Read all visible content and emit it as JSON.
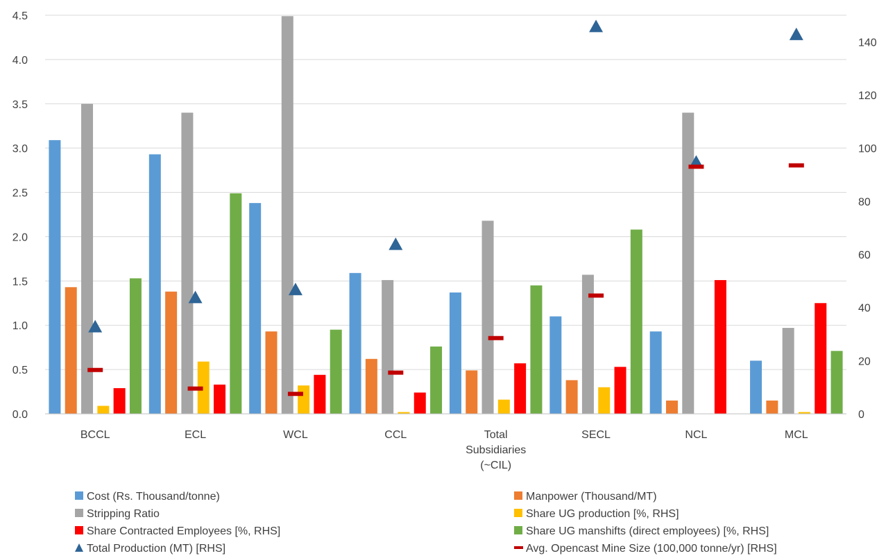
{
  "chart_data": {
    "type": "bar",
    "title": "",
    "categories": [
      [
        "BCCL"
      ],
      [
        "ECL"
      ],
      [
        "WCL"
      ],
      [
        "CCL"
      ],
      [
        "Total",
        "Subsidiaries",
        "(~CIL)"
      ],
      [
        "SECL"
      ],
      [
        "NCL"
      ],
      [
        "MCL"
      ]
    ],
    "y_left": {
      "min": 0,
      "max": 4.5,
      "ticks": [
        "0.0",
        "0.5",
        "1.0",
        "1.5",
        "2.0",
        "2.5",
        "3.0",
        "3.5",
        "4.0",
        "4.5"
      ]
    },
    "y_right": {
      "min": 0,
      "max": 150,
      "ticks": [
        "0",
        "20",
        "40",
        "60",
        "80",
        "100",
        "120",
        "140"
      ]
    },
    "grid": true,
    "legend_position": "bottom",
    "series": [
      {
        "name": "Cost (Rs. Thousand/tonne)",
        "kind": "bar",
        "axis": "left",
        "color": "#5B9BD5",
        "values": [
          3.09,
          2.93,
          2.38,
          1.59,
          1.37,
          1.1,
          0.93,
          0.6
        ]
      },
      {
        "name": "Manpower (Thousand/MT)",
        "kind": "bar",
        "axis": "left",
        "color": "#ED7D31",
        "values": [
          1.43,
          1.38,
          0.93,
          0.62,
          0.49,
          0.38,
          0.15,
          0.15
        ]
      },
      {
        "name": "Stripping Ratio",
        "kind": "bar",
        "axis": "left",
        "color": "#A5A5A5",
        "values": [
          3.5,
          3.4,
          4.49,
          1.51,
          2.18,
          1.57,
          3.4,
          0.97
        ]
      },
      {
        "name": "Share UG production [%, RHS]",
        "kind": "bar",
        "axis": "left",
        "color": "#FFC000",
        "values": [
          0.09,
          0.59,
          0.32,
          0.02,
          0.16,
          0.3,
          0.0,
          0.02
        ]
      },
      {
        "name": "Share Contracted Employees [%, RHS]",
        "kind": "bar",
        "axis": "left",
        "color": "#FF0000",
        "values": [
          0.29,
          0.33,
          0.44,
          0.24,
          0.57,
          0.53,
          1.51,
          1.25
        ]
      },
      {
        "name": "Share UG manshifts (direct employees) [%, RHS]",
        "kind": "bar",
        "axis": "left",
        "color": "#70AD47",
        "values": [
          1.53,
          2.49,
          0.95,
          0.76,
          1.45,
          2.08,
          0.0,
          0.71
        ]
      },
      {
        "name": "Total Production (MT) [RHS]",
        "kind": "marker-triangle",
        "axis": "right",
        "color": "#2E6496",
        "values": [
          33,
          44,
          47,
          64,
          null,
          146,
          95,
          143
        ]
      },
      {
        "name": "Avg. Opencast Mine Size (100,000 tonne/yr) [RHS]",
        "kind": "marker-dash",
        "axis": "right",
        "color": "#C00000",
        "values": [
          16.5,
          9.5,
          7.5,
          15.5,
          28.5,
          44.5,
          93,
          93.5
        ]
      }
    ]
  }
}
